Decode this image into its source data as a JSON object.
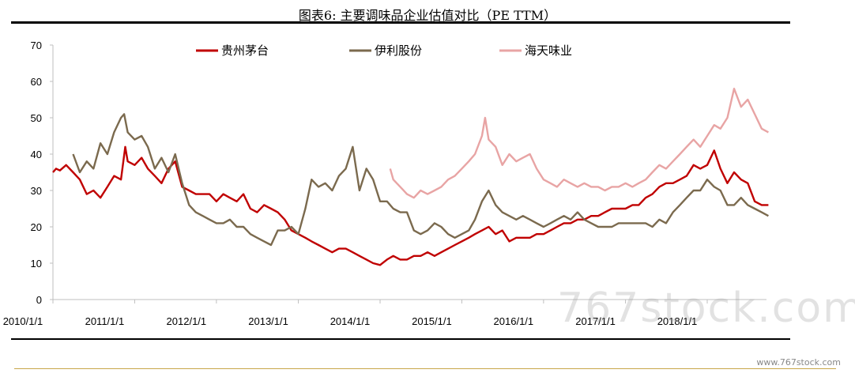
{
  "header": {
    "title": "图表6:   主要调味品企业估值对比（PE TTM）"
  },
  "watermark": "767stock.com",
  "footer": {
    "site": "www.767stock.com"
  },
  "chart_data": {
    "type": "line",
    "xlabel": "",
    "ylabel": "",
    "ylim": [
      0,
      70
    ],
    "yticks": [
      0,
      10,
      20,
      30,
      40,
      50,
      60,
      70
    ],
    "xlim": [
      "2010/1/1",
      "2018/10/1"
    ],
    "xticks": [
      "2010/1/1",
      "2011/1/1",
      "2012/1/1",
      "2013/1/1",
      "2014/1/1",
      "2015/1/1",
      "2016/1/1",
      "2017/1/1",
      "2018/1/1"
    ],
    "grid": false,
    "legend_position": "top",
    "series": [
      {
        "name": "贵州茅台",
        "color": "#c00000",
        "points": [
          [
            "2010/1/1",
            35
          ],
          [
            "2010/1/15",
            36
          ],
          [
            "2010/2/1",
            35.5
          ],
          [
            "2010/3/1",
            37
          ],
          [
            "2010/4/1",
            35
          ],
          [
            "2010/5/1",
            33
          ],
          [
            "2010/6/1",
            29
          ],
          [
            "2010/7/1",
            30
          ],
          [
            "2010/8/1",
            28
          ],
          [
            "2010/9/1",
            31
          ],
          [
            "2010/10/1",
            34
          ],
          [
            "2010/11/1",
            33
          ],
          [
            "2010/11/20",
            42
          ],
          [
            "2010/12/1",
            38
          ],
          [
            "2011/1/1",
            37
          ],
          [
            "2011/2/1",
            39
          ],
          [
            "2011/3/1",
            36
          ],
          [
            "2011/4/1",
            34
          ],
          [
            "2011/5/1",
            32
          ],
          [
            "2011/6/1",
            36
          ],
          [
            "2011/7/1",
            38
          ],
          [
            "2011/8/1",
            31
          ],
          [
            "2011/9/1",
            30
          ],
          [
            "2011/10/1",
            29
          ],
          [
            "2011/11/1",
            29
          ],
          [
            "2011/12/1",
            29
          ],
          [
            "2012/1/1",
            27
          ],
          [
            "2012/2/1",
            29
          ],
          [
            "2012/3/1",
            28
          ],
          [
            "2012/4/1",
            27
          ],
          [
            "2012/5/1",
            29
          ],
          [
            "2012/6/1",
            25
          ],
          [
            "2012/7/1",
            24
          ],
          [
            "2012/8/1",
            26
          ],
          [
            "2012/9/1",
            25
          ],
          [
            "2012/10/1",
            24
          ],
          [
            "2012/11/1",
            22
          ],
          [
            "2012/12/1",
            19
          ],
          [
            "2013/1/1",
            18
          ],
          [
            "2013/2/1",
            17
          ],
          [
            "2013/3/1",
            16
          ],
          [
            "2013/4/1",
            15
          ],
          [
            "2013/5/1",
            14
          ],
          [
            "2013/6/1",
            13
          ],
          [
            "2013/7/1",
            14
          ],
          [
            "2013/8/1",
            14
          ],
          [
            "2013/9/1",
            13
          ],
          [
            "2013/10/1",
            12
          ],
          [
            "2013/11/1",
            11
          ],
          [
            "2013/12/1",
            10
          ],
          [
            "2014/1/1",
            9.5
          ],
          [
            "2014/2/1",
            11
          ],
          [
            "2014/3/1",
            12
          ],
          [
            "2014/4/1",
            11
          ],
          [
            "2014/5/1",
            11
          ],
          [
            "2014/6/1",
            12
          ],
          [
            "2014/7/1",
            12
          ],
          [
            "2014/8/1",
            13
          ],
          [
            "2014/9/1",
            12
          ],
          [
            "2014/10/1",
            13
          ],
          [
            "2014/11/1",
            14
          ],
          [
            "2014/12/1",
            15
          ],
          [
            "2015/1/1",
            16
          ],
          [
            "2015/2/1",
            17
          ],
          [
            "2015/3/1",
            18
          ],
          [
            "2015/4/1",
            19
          ],
          [
            "2015/5/1",
            20
          ],
          [
            "2015/6/1",
            18
          ],
          [
            "2015/7/1",
            19
          ],
          [
            "2015/8/1",
            16
          ],
          [
            "2015/9/1",
            17
          ],
          [
            "2015/10/1",
            17
          ],
          [
            "2015/11/1",
            17
          ],
          [
            "2015/12/1",
            18
          ],
          [
            "2016/1/1",
            18
          ],
          [
            "2016/2/1",
            19
          ],
          [
            "2016/3/1",
            20
          ],
          [
            "2016/4/1",
            21
          ],
          [
            "2016/5/1",
            21
          ],
          [
            "2016/6/1",
            22
          ],
          [
            "2016/7/1",
            22
          ],
          [
            "2016/8/1",
            23
          ],
          [
            "2016/9/1",
            23
          ],
          [
            "2016/10/1",
            24
          ],
          [
            "2016/11/1",
            25
          ],
          [
            "2016/12/1",
            25
          ],
          [
            "2017/1/1",
            25
          ],
          [
            "2017/2/1",
            26
          ],
          [
            "2017/3/1",
            26
          ],
          [
            "2017/4/1",
            28
          ],
          [
            "2017/5/1",
            29
          ],
          [
            "2017/6/1",
            31
          ],
          [
            "2017/7/1",
            32
          ],
          [
            "2017/8/1",
            32
          ],
          [
            "2017/9/1",
            33
          ],
          [
            "2017/10/1",
            34
          ],
          [
            "2017/11/1",
            37
          ],
          [
            "2017/12/1",
            36
          ],
          [
            "2018/1/1",
            37
          ],
          [
            "2018/2/1",
            41
          ],
          [
            "2018/3/1",
            36
          ],
          [
            "2018/4/1",
            32
          ],
          [
            "2018/5/1",
            35
          ],
          [
            "2018/6/1",
            33
          ],
          [
            "2018/7/1",
            32
          ],
          [
            "2018/8/1",
            27
          ],
          [
            "2018/9/1",
            26
          ],
          [
            "2018/10/1",
            26
          ]
        ]
      },
      {
        "name": "伊利股份",
        "color": "#7b6a4e",
        "points": [
          [
            "2010/4/1",
            40
          ],
          [
            "2010/5/1",
            35
          ],
          [
            "2010/6/1",
            38
          ],
          [
            "2010/7/1",
            36
          ],
          [
            "2010/8/1",
            43
          ],
          [
            "2010/9/1",
            40
          ],
          [
            "2010/10/1",
            46
          ],
          [
            "2010/11/1",
            50
          ],
          [
            "2010/11/15",
            51
          ],
          [
            "2010/12/1",
            46
          ],
          [
            "2011/1/1",
            44
          ],
          [
            "2011/2/1",
            45
          ],
          [
            "2011/3/1",
            42
          ],
          [
            "2011/4/1",
            36
          ],
          [
            "2011/5/1",
            39
          ],
          [
            "2011/6/1",
            35
          ],
          [
            "2011/7/1",
            40
          ],
          [
            "2011/8/1",
            32
          ],
          [
            "2011/9/1",
            26
          ],
          [
            "2011/10/1",
            24
          ],
          [
            "2011/11/1",
            23
          ],
          [
            "2011/12/1",
            22
          ],
          [
            "2012/1/1",
            21
          ],
          [
            "2012/2/1",
            21
          ],
          [
            "2012/3/1",
            22
          ],
          [
            "2012/4/1",
            20
          ],
          [
            "2012/5/1",
            20
          ],
          [
            "2012/6/1",
            18
          ],
          [
            "2012/7/1",
            17
          ],
          [
            "2012/8/1",
            16
          ],
          [
            "2012/9/1",
            15
          ],
          [
            "2012/10/1",
            19
          ],
          [
            "2012/11/1",
            19
          ],
          [
            "2012/12/1",
            20
          ],
          [
            "2013/1/1",
            18
          ],
          [
            "2013/2/1",
            25
          ],
          [
            "2013/3/1",
            33
          ],
          [
            "2013/4/1",
            31
          ],
          [
            "2013/5/1",
            32
          ],
          [
            "2013/6/1",
            30
          ],
          [
            "2013/7/1",
            34
          ],
          [
            "2013/8/1",
            36
          ],
          [
            "2013/9/1",
            42
          ],
          [
            "2013/10/1",
            30
          ],
          [
            "2013/11/1",
            36
          ],
          [
            "2013/12/1",
            33
          ],
          [
            "2014/1/1",
            27
          ],
          [
            "2014/2/1",
            27
          ],
          [
            "2014/3/1",
            25
          ],
          [
            "2014/4/1",
            24
          ],
          [
            "2014/5/1",
            24
          ],
          [
            "2014/6/1",
            19
          ],
          [
            "2014/7/1",
            18
          ],
          [
            "2014/8/1",
            19
          ],
          [
            "2014/9/1",
            21
          ],
          [
            "2014/10/1",
            20
          ],
          [
            "2014/11/1",
            18
          ],
          [
            "2014/12/1",
            17
          ],
          [
            "2015/1/1",
            18
          ],
          [
            "2015/2/1",
            19
          ],
          [
            "2015/3/1",
            22
          ],
          [
            "2015/4/1",
            27
          ],
          [
            "2015/5/1",
            30
          ],
          [
            "2015/6/1",
            26
          ],
          [
            "2015/7/1",
            24
          ],
          [
            "2015/8/1",
            23
          ],
          [
            "2015/9/1",
            22
          ],
          [
            "2015/10/1",
            23
          ],
          [
            "2015/11/1",
            22
          ],
          [
            "2015/12/1",
            21
          ],
          [
            "2016/1/1",
            20
          ],
          [
            "2016/2/1",
            21
          ],
          [
            "2016/3/1",
            22
          ],
          [
            "2016/4/1",
            23
          ],
          [
            "2016/5/1",
            22
          ],
          [
            "2016/6/1",
            24
          ],
          [
            "2016/7/1",
            22
          ],
          [
            "2016/8/1",
            21
          ],
          [
            "2016/9/1",
            20
          ],
          [
            "2016/10/1",
            20
          ],
          [
            "2016/11/1",
            20
          ],
          [
            "2016/12/1",
            21
          ],
          [
            "2017/1/1",
            21
          ],
          [
            "2017/2/1",
            21
          ],
          [
            "2017/3/1",
            21
          ],
          [
            "2017/4/1",
            21
          ],
          [
            "2017/5/1",
            20
          ],
          [
            "2017/6/1",
            22
          ],
          [
            "2017/7/1",
            21
          ],
          [
            "2017/8/1",
            24
          ],
          [
            "2017/9/1",
            26
          ],
          [
            "2017/10/1",
            28
          ],
          [
            "2017/11/1",
            30
          ],
          [
            "2017/12/1",
            30
          ],
          [
            "2018/1/1",
            33
          ],
          [
            "2018/2/1",
            31
          ],
          [
            "2018/3/1",
            30
          ],
          [
            "2018/4/1",
            26
          ],
          [
            "2018/5/1",
            26
          ],
          [
            "2018/6/1",
            28
          ],
          [
            "2018/7/1",
            26
          ],
          [
            "2018/8/1",
            25
          ],
          [
            "2018/9/1",
            24
          ],
          [
            "2018/10/1",
            23
          ]
        ]
      },
      {
        "name": "海天味业",
        "color": "#e8a4a4",
        "points": [
          [
            "2014/2/15",
            36
          ],
          [
            "2014/3/1",
            33
          ],
          [
            "2014/4/1",
            31
          ],
          [
            "2014/5/1",
            29
          ],
          [
            "2014/6/1",
            28
          ],
          [
            "2014/7/1",
            30
          ],
          [
            "2014/8/1",
            29
          ],
          [
            "2014/9/1",
            30
          ],
          [
            "2014/10/1",
            31
          ],
          [
            "2014/11/1",
            33
          ],
          [
            "2014/12/1",
            34
          ],
          [
            "2015/1/1",
            36
          ],
          [
            "2015/2/1",
            38
          ],
          [
            "2015/3/1",
            40
          ],
          [
            "2015/4/1",
            45
          ],
          [
            "2015/4/15",
            50
          ],
          [
            "2015/5/1",
            44
          ],
          [
            "2015/6/1",
            42
          ],
          [
            "2015/7/1",
            37
          ],
          [
            "2015/8/1",
            40
          ],
          [
            "2015/9/1",
            38
          ],
          [
            "2015/10/1",
            39
          ],
          [
            "2015/11/1",
            40
          ],
          [
            "2015/12/1",
            36
          ],
          [
            "2016/1/1",
            33
          ],
          [
            "2016/2/1",
            32
          ],
          [
            "2016/3/1",
            31
          ],
          [
            "2016/4/1",
            33
          ],
          [
            "2016/5/1",
            32
          ],
          [
            "2016/6/1",
            31
          ],
          [
            "2016/7/1",
            32
          ],
          [
            "2016/8/1",
            31
          ],
          [
            "2016/9/1",
            31
          ],
          [
            "2016/10/1",
            30
          ],
          [
            "2016/11/1",
            31
          ],
          [
            "2016/12/1",
            31
          ],
          [
            "2017/1/1",
            32
          ],
          [
            "2017/2/1",
            31
          ],
          [
            "2017/3/1",
            32
          ],
          [
            "2017/4/1",
            33
          ],
          [
            "2017/5/1",
            35
          ],
          [
            "2017/6/1",
            37
          ],
          [
            "2017/7/1",
            36
          ],
          [
            "2017/8/1",
            38
          ],
          [
            "2017/9/1",
            40
          ],
          [
            "2017/10/1",
            42
          ],
          [
            "2017/11/1",
            44
          ],
          [
            "2017/12/1",
            42
          ],
          [
            "2018/1/1",
            45
          ],
          [
            "2018/2/1",
            48
          ],
          [
            "2018/3/1",
            47
          ],
          [
            "2018/4/1",
            50
          ],
          [
            "2018/5/1",
            58
          ],
          [
            "2018/6/1",
            53
          ],
          [
            "2018/7/1",
            55
          ],
          [
            "2018/8/1",
            51
          ],
          [
            "2018/9/1",
            47
          ],
          [
            "2018/10/1",
            46
          ]
        ]
      }
    ]
  }
}
